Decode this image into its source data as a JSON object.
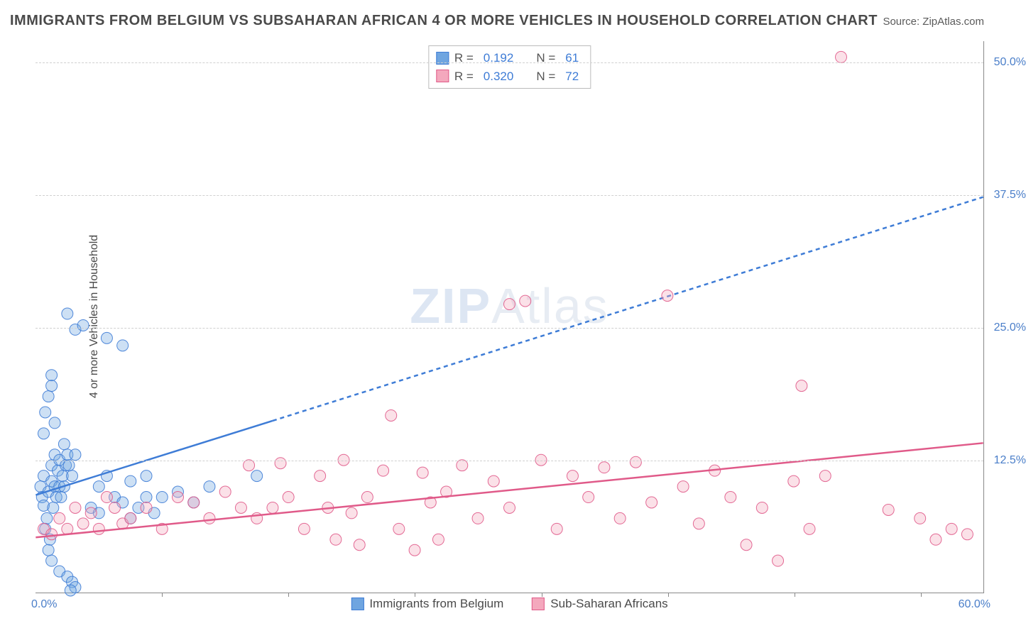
{
  "title": "IMMIGRANTS FROM BELGIUM VS SUBSAHARAN AFRICAN 4 OR MORE VEHICLES IN HOUSEHOLD CORRELATION CHART",
  "source": "Source: ZipAtlas.com",
  "ylabel": "4 or more Vehicles in Household",
  "watermark_zip": "ZIP",
  "watermark_atlas": "Atlas",
  "chart": {
    "type": "scatter",
    "background_color": "#ffffff",
    "grid_color": "#d0d0d0",
    "axis_color": "#888888",
    "tick_label_color": "#4a7ec9",
    "xlim": [
      0,
      60
    ],
    "ylim": [
      0,
      52
    ],
    "xticks": [
      0,
      60
    ],
    "xtick_labels": [
      "0.0%",
      "60.0%"
    ],
    "minor_xtick_positions": [
      8,
      16,
      24,
      32,
      40,
      48,
      56
    ],
    "yticks": [
      12.5,
      25.0,
      37.5,
      50.0
    ],
    "ytick_labels": [
      "12.5%",
      "25.0%",
      "37.5%",
      "50.0%"
    ],
    "marker_radius": 8,
    "marker_opacity_fill": 0.35,
    "marker_opacity_stroke": 0.9,
    "series": [
      {
        "name": "Immigrants from Belgium",
        "color": "#6fa5e0",
        "stroke": "#3e7cd6",
        "R": "0.192",
        "N": "61",
        "trend": {
          "solid": {
            "x1": 0,
            "y1": 9.2,
            "x2": 15,
            "y2": 16.2
          },
          "dashed": {
            "x1": 15,
            "y1": 16.2,
            "x2": 60,
            "y2": 37.3
          },
          "width": 2.5,
          "dash": "6,5"
        },
        "points": [
          [
            0.3,
            10
          ],
          [
            0.4,
            9
          ],
          [
            0.5,
            8.2
          ],
          [
            0.6,
            6
          ],
          [
            0.7,
            7
          ],
          [
            0.8,
            9.5
          ],
          [
            0.9,
            5
          ],
          [
            0.5,
            11
          ],
          [
            1.0,
            10.5
          ],
          [
            1.1,
            8
          ],
          [
            1.0,
            12
          ],
          [
            1.2,
            10
          ],
          [
            1.3,
            9
          ],
          [
            1.4,
            11.5
          ],
          [
            1.2,
            13
          ],
          [
            1.5,
            10
          ],
          [
            1.6,
            9
          ],
          [
            1.7,
            11
          ],
          [
            1.5,
            12.5
          ],
          [
            1.8,
            10
          ],
          [
            1.9,
            12
          ],
          [
            2.0,
            13
          ],
          [
            1.8,
            14
          ],
          [
            2.1,
            12
          ],
          [
            2.3,
            11
          ],
          [
            2.5,
            13
          ],
          [
            0.8,
            4
          ],
          [
            1.0,
            3
          ],
          [
            1.5,
            2
          ],
          [
            2.0,
            1.5
          ],
          [
            2.3,
            1
          ],
          [
            2.5,
            0.5
          ],
          [
            2.2,
            0.2
          ],
          [
            0.6,
            17
          ],
          [
            0.8,
            18.5
          ],
          [
            1.0,
            19.5
          ],
          [
            0.5,
            15
          ],
          [
            1.2,
            16
          ],
          [
            1.0,
            20.5
          ],
          [
            2.0,
            26.3
          ],
          [
            2.5,
            24.8
          ],
          [
            3.0,
            25.2
          ],
          [
            4.5,
            24.0
          ],
          [
            5.5,
            23.3
          ],
          [
            3.5,
            8
          ],
          [
            4.0,
            7.5
          ],
          [
            5.0,
            9
          ],
          [
            5.5,
            8.5
          ],
          [
            6.0,
            7
          ],
          [
            6.5,
            8
          ],
          [
            7.0,
            9
          ],
          [
            7.5,
            7.5
          ],
          [
            4.0,
            10
          ],
          [
            4.5,
            11
          ],
          [
            6.0,
            10.5
          ],
          [
            7.0,
            11
          ],
          [
            8.0,
            9
          ],
          [
            9.0,
            9.5
          ],
          [
            10.0,
            8.5
          ],
          [
            11.0,
            10
          ],
          [
            14.0,
            11
          ]
        ]
      },
      {
        "name": "Sub-Saharan Africans",
        "color": "#f4a8bd",
        "stroke": "#e05a89",
        "R": "0.320",
        "N": "72",
        "trend": {
          "solid": {
            "x1": 0,
            "y1": 5.2,
            "x2": 60,
            "y2": 14.1
          },
          "dashed": null,
          "width": 2.5,
          "dash": null
        },
        "points": [
          [
            0.5,
            6
          ],
          [
            1.0,
            5.5
          ],
          [
            1.5,
            7
          ],
          [
            2.0,
            6
          ],
          [
            2.5,
            8
          ],
          [
            3.0,
            6.5
          ],
          [
            3.5,
            7.5
          ],
          [
            4.0,
            6
          ],
          [
            4.5,
            9
          ],
          [
            5.0,
            8
          ],
          [
            5.5,
            6.5
          ],
          [
            6.0,
            7
          ],
          [
            7.0,
            8
          ],
          [
            8.0,
            6
          ],
          [
            9.0,
            9
          ],
          [
            10.0,
            8.5
          ],
          [
            11.0,
            7
          ],
          [
            12.0,
            9.5
          ],
          [
            13.0,
            8
          ],
          [
            13.5,
            12
          ],
          [
            14.0,
            7
          ],
          [
            15.0,
            8
          ],
          [
            15.5,
            12.2
          ],
          [
            16.0,
            9
          ],
          [
            17.0,
            6
          ],
          [
            18.0,
            11
          ],
          [
            18.5,
            8
          ],
          [
            19.0,
            5
          ],
          [
            19.5,
            12.5
          ],
          [
            20.0,
            7.5
          ],
          [
            20.5,
            4.5
          ],
          [
            21.0,
            9
          ],
          [
            22.0,
            11.5
          ],
          [
            22.5,
            16.7
          ],
          [
            23.0,
            6
          ],
          [
            24.0,
            4
          ],
          [
            24.5,
            11.3
          ],
          [
            25.0,
            8.5
          ],
          [
            25.5,
            5
          ],
          [
            26.0,
            9.5
          ],
          [
            27.0,
            12
          ],
          [
            28.0,
            7
          ],
          [
            29.0,
            10.5
          ],
          [
            30.0,
            8
          ],
          [
            30.0,
            27.2
          ],
          [
            31.0,
            27.5
          ],
          [
            32.0,
            12.5
          ],
          [
            33.0,
            6
          ],
          [
            34.0,
            11
          ],
          [
            35.0,
            9
          ],
          [
            36.0,
            11.8
          ],
          [
            37.0,
            7
          ],
          [
            38.0,
            12.3
          ],
          [
            39.0,
            8.5
          ],
          [
            40.0,
            28.0
          ],
          [
            41.0,
            10
          ],
          [
            42.0,
            6.5
          ],
          [
            43.0,
            11.5
          ],
          [
            44.0,
            9
          ],
          [
            45.0,
            4.5
          ],
          [
            46.0,
            8
          ],
          [
            47.0,
            3
          ],
          [
            48.0,
            10.5
          ],
          [
            48.5,
            19.5
          ],
          [
            49.0,
            6
          ],
          [
            50.0,
            11
          ],
          [
            51.0,
            50.5
          ],
          [
            54.0,
            7.8
          ],
          [
            56.0,
            7
          ],
          [
            57.0,
            5
          ],
          [
            58.0,
            6
          ],
          [
            59.0,
            5.5
          ]
        ]
      }
    ]
  },
  "stats_legend": {
    "r_label": "R =",
    "n_label": "N ="
  },
  "bottom_legend": {
    "items": [
      "Immigrants from Belgium",
      "Sub-Saharan Africans"
    ]
  }
}
